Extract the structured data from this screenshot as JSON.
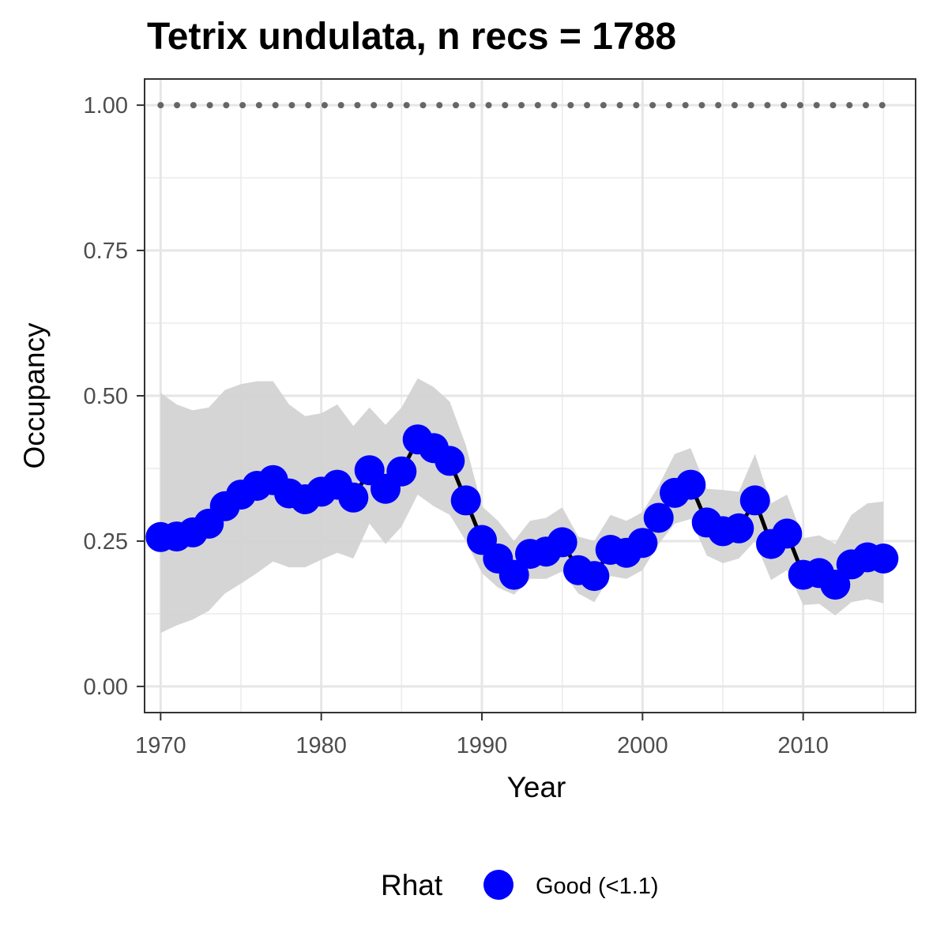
{
  "chart_data": {
    "type": "line",
    "title": "Tetrix undulata, n recs = 1788",
    "xlabel": "Year",
    "ylabel": "Occupancy",
    "xlim": [
      1969,
      2017
    ],
    "ylim": [
      -0.045,
      1.045
    ],
    "x_ticks": [
      1970,
      1980,
      1990,
      2000,
      2010
    ],
    "x_tick_labels": [
      "1970",
      "1980",
      "1990",
      "2000",
      "2010"
    ],
    "y_ticks": [
      0,
      0.25,
      0.5,
      0.75,
      1.0
    ],
    "y_tick_labels": [
      "0.00",
      "0.25",
      "0.50",
      "0.75",
      "1.00"
    ],
    "grid": true,
    "x": [
      1970,
      1971,
      1972,
      1973,
      1974,
      1975,
      1976,
      1977,
      1978,
      1979,
      1980,
      1981,
      1982,
      1983,
      1984,
      1985,
      1986,
      1987,
      1988,
      1989,
      1990,
      1991,
      1992,
      1993,
      1994,
      1995,
      1996,
      1997,
      1998,
      1999,
      2000,
      2001,
      2002,
      2003,
      2004,
      2005,
      2006,
      2007,
      2008,
      2009,
      2010,
      2011,
      2012,
      2013,
      2014,
      2015
    ],
    "series": [
      {
        "name": "Good (<1.1)",
        "y": [
          0.257,
          0.258,
          0.265,
          0.28,
          0.31,
          0.33,
          0.345,
          0.355,
          0.332,
          0.322,
          0.335,
          0.347,
          0.325,
          0.372,
          0.34,
          0.37,
          0.425,
          0.41,
          0.388,
          0.32,
          0.252,
          0.22,
          0.192,
          0.228,
          0.232,
          0.248,
          0.2,
          0.19,
          0.235,
          0.23,
          0.247,
          0.29,
          0.333,
          0.347,
          0.282,
          0.267,
          0.272,
          0.32,
          0.245,
          0.263,
          0.192,
          0.195,
          0.175,
          0.21,
          0.222,
          0.22
        ],
        "lower": [
          0.092,
          0.105,
          0.115,
          0.13,
          0.16,
          0.177,
          0.195,
          0.215,
          0.205,
          0.205,
          0.218,
          0.23,
          0.22,
          0.28,
          0.245,
          0.275,
          0.33,
          0.31,
          0.295,
          0.25,
          0.195,
          0.17,
          0.158,
          0.185,
          0.185,
          0.198,
          0.16,
          0.145,
          0.19,
          0.185,
          0.2,
          0.245,
          0.28,
          0.288,
          0.225,
          0.212,
          0.22,
          0.25,
          0.183,
          0.2,
          0.14,
          0.142,
          0.122,
          0.145,
          0.15,
          0.143
        ],
        "upper": [
          0.505,
          0.485,
          0.475,
          0.48,
          0.51,
          0.52,
          0.525,
          0.525,
          0.485,
          0.465,
          0.47,
          0.485,
          0.448,
          0.48,
          0.45,
          0.48,
          0.53,
          0.515,
          0.49,
          0.415,
          0.31,
          0.285,
          0.25,
          0.285,
          0.29,
          0.308,
          0.258,
          0.25,
          0.295,
          0.285,
          0.3,
          0.345,
          0.4,
          0.41,
          0.34,
          0.338,
          0.335,
          0.4,
          0.315,
          0.33,
          0.255,
          0.26,
          0.245,
          0.295,
          0.315,
          0.318
        ]
      }
    ],
    "reference_line": {
      "y": 1.0,
      "style": "dotted",
      "color": "#666666"
    },
    "legend": {
      "title": "Rhat",
      "position": "bottom",
      "entries": [
        "Good (<1.1)"
      ]
    },
    "colors": {
      "points": "#0000ff",
      "line": "#000000",
      "ribbon": "#d3d3d3"
    }
  }
}
